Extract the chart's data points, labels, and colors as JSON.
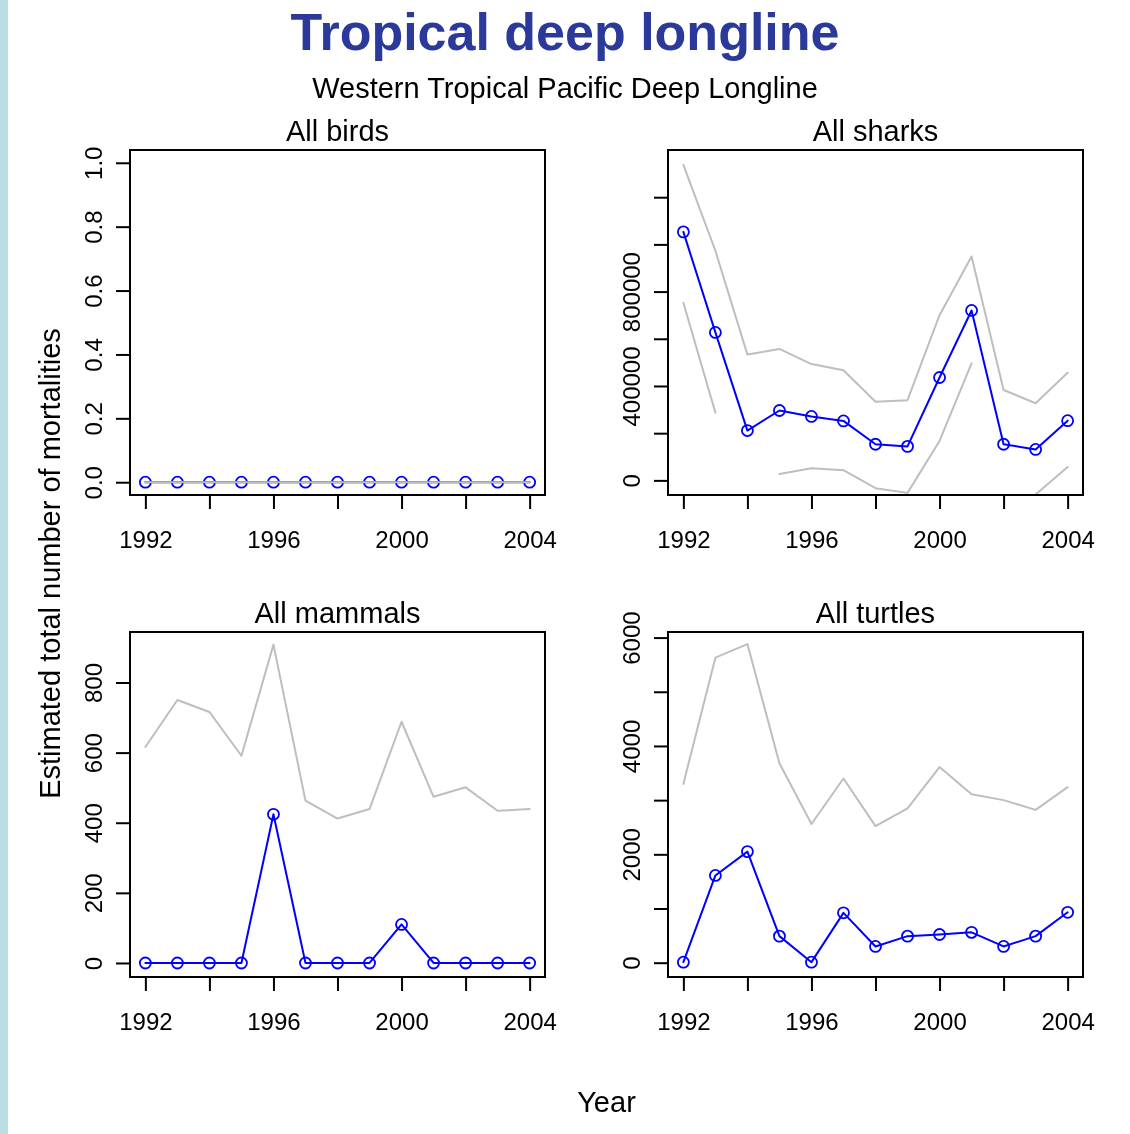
{
  "chart_data": [
    {
      "type": "line",
      "title": "All birds",
      "ylabel": "Estimated total number of mortalities",
      "annotations": [
        "Tropical deep longline",
        "Western Tropical Pacific Deep Longline"
      ],
      "x": [
        1992,
        1993,
        1994,
        1995,
        1996,
        1997,
        1998,
        1999,
        2000,
        2001,
        2002,
        2003,
        2004
      ],
      "xlim": [
        1991.52,
        2004.48
      ],
      "xticks": [
        1992,
        {
          "value": 1994,
          "label": null
        },
        1996,
        {
          "value": 1998,
          "label": null
        },
        2000,
        {
          "value": 2002,
          "label": null
        },
        2004
      ],
      "ylim": [
        -0.04,
        1.04
      ],
      "yticks": [
        {
          "value": 0,
          "label": "0.0"
        },
        0.2,
        0.4,
        0.6,
        0.8,
        {
          "value": 1,
          "label": "1.0"
        }
      ],
      "series": [
        {
          "color": "#0000ff",
          "marker": "circle",
          "values": [
            0,
            0,
            0,
            0,
            0,
            0,
            0,
            0,
            0,
            0,
            0,
            0,
            0
          ]
        },
        {
          "color": "#bebebe",
          "marker": "none",
          "values": [
            0,
            0,
            0,
            0,
            0,
            0,
            0,
            0,
            0,
            0,
            0,
            0,
            0
          ]
        }
      ]
    },
    {
      "type": "line",
      "title": "All sharks",
      "x": [
        1992,
        1993,
        1994,
        1995,
        1996,
        1997,
        1998,
        1999,
        2000,
        2001,
        2002,
        2003,
        2004
      ],
      "xlim": [
        1991.52,
        2004.48
      ],
      "xticks": [
        1992,
        {
          "value": 1994,
          "label": null
        },
        1996,
        {
          "value": 1998,
          "label": null
        },
        2000,
        {
          "value": 2002,
          "label": null
        },
        2004
      ],
      "ylim": [
        -62000,
        1400000
      ],
      "yticks": [
        0,
        {
          "value": 200000,
          "label": null
        },
        400000,
        {
          "value": 600000,
          "label": null
        },
        800000,
        {
          "value": 1000000,
          "label": null
        },
        {
          "value": 1200000,
          "label": null
        }
      ],
      "series": [
        {
          "color": "#bebebe",
          "marker": "none",
          "values": [
            1337000,
            973000,
            533000,
            557000,
            493000,
            467000,
            333000,
            340000,
            700000,
            949000,
            383000,
            327000,
            456000
          ]
        },
        {
          "color": "#bebebe",
          "marker": "none",
          "values": [
            753000,
            287000,
            null,
            27000,
            51000,
            43000,
            -33000,
            -53000,
            167000,
            496000,
            null,
            -60000,
            57000
          ]
        },
        {
          "color": "#0000ff",
          "marker": "circle",
          "values": [
            1053000,
            627000,
            211000,
            296000,
            271000,
            252000,
            153000,
            144000,
            436000,
            720000,
            153000,
            131000,
            253000
          ]
        }
      ]
    },
    {
      "type": "line",
      "title": "All mammals",
      "xlabel": "Year",
      "x": [
        1992,
        1993,
        1994,
        1995,
        1996,
        1997,
        1998,
        1999,
        2000,
        2001,
        2002,
        2003,
        2004
      ],
      "xlim": [
        1991.52,
        2004.48
      ],
      "xticks": [
        1992,
        {
          "value": 1994,
          "label": null
        },
        1996,
        {
          "value": 1998,
          "label": null
        },
        2000,
        {
          "value": 2002,
          "label": null
        },
        2004
      ],
      "ylim": [
        -40,
        944
      ],
      "yticks": [
        0,
        200,
        400,
        600,
        800
      ],
      "series": [
        {
          "color": "#bebebe",
          "marker": "none",
          "values": [
            616,
            750,
            716,
            591,
            908,
            463,
            412,
            439,
            688,
            474,
            501,
            434,
            439
          ]
        },
        {
          "color": "#0000ff",
          "marker": "circle",
          "values": [
            0,
            0,
            0,
            0,
            424,
            0,
            0,
            0,
            110,
            0,
            0,
            0,
            0
          ]
        }
      ]
    },
    {
      "type": "line",
      "title": "All turtles",
      "x": [
        1992,
        1993,
        1994,
        1995,
        1996,
        1997,
        1998,
        1999,
        2000,
        2001,
        2002,
        2003,
        2004
      ],
      "xlim": [
        1991.52,
        2004.48
      ],
      "xticks": [
        1992,
        {
          "value": 1994,
          "label": null
        },
        1996,
        {
          "value": 1998,
          "label": null
        },
        2000,
        {
          "value": 2002,
          "label": null
        },
        2004
      ],
      "ylim": [
        -264,
        6103
      ],
      "yticks": [
        0,
        {
          "value": 1000,
          "label": null
        },
        2000,
        {
          "value": 3000,
          "label": null
        },
        4000,
        {
          "value": 5000,
          "label": null
        },
        6000
      ],
      "series": [
        {
          "color": "#bebebe",
          "marker": "none",
          "values": [
            3300,
            5630,
            5880,
            3680,
            2560,
            3400,
            2520,
            2850,
            3610,
            3110,
            3000,
            2820,
            3240
          ]
        },
        {
          "color": "#0000ff",
          "marker": "circle",
          "values": [
            10,
            1610,
            2050,
            490,
            10,
            920,
            300,
            490,
            520,
            560,
            300,
            490,
            930
          ]
        }
      ]
    }
  ]
}
